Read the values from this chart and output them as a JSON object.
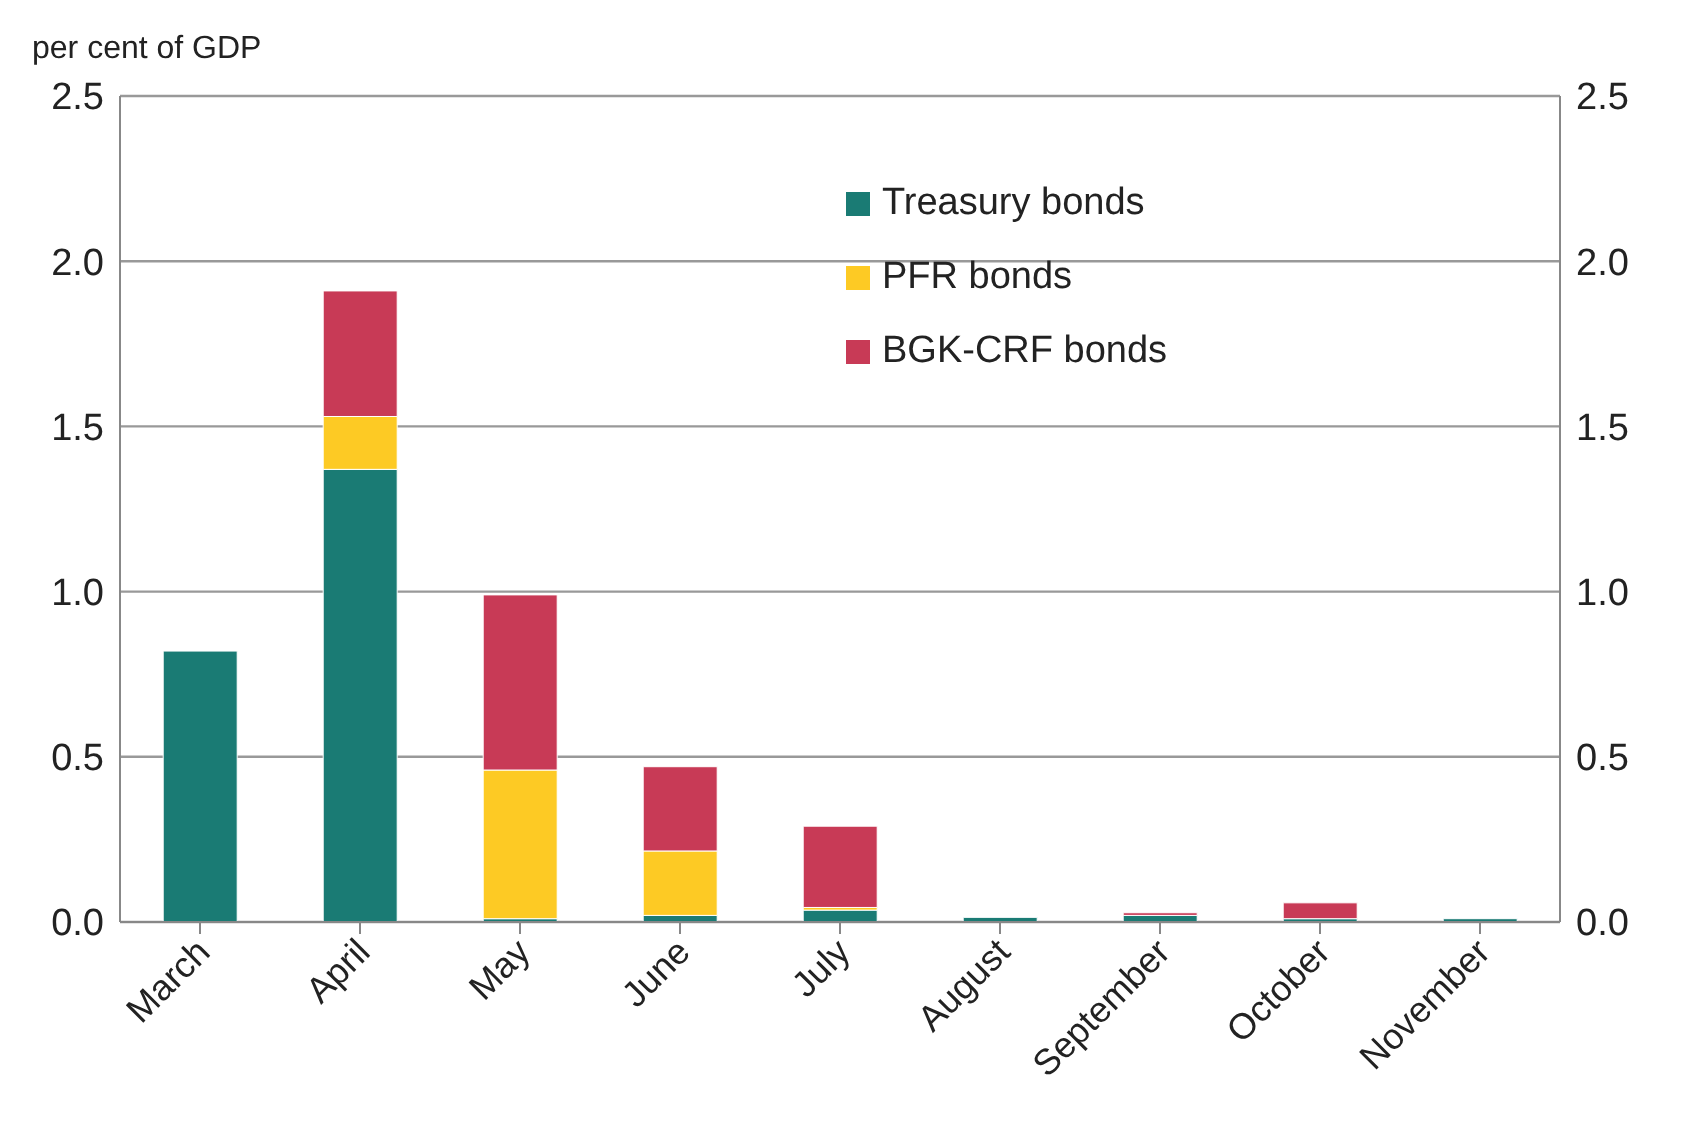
{
  "chart_data": {
    "type": "bar",
    "ylabel": "per cent of GDP",
    "stacked": true,
    "categories": [
      "March",
      "April",
      "May",
      "June",
      "July",
      "August",
      "September",
      "October",
      "November"
    ],
    "series": [
      {
        "name": "Treasury bonds",
        "color": "#1a7b74",
        "values": [
          0.82,
          1.37,
          0.01,
          0.02,
          0.036,
          0.014,
          0.02,
          0.01,
          0.01
        ]
      },
      {
        "name": "PFR bonds",
        "color": "#fdca24",
        "values": [
          0,
          0.16,
          0.45,
          0.195,
          0.008,
          0,
          0,
          0,
          0
        ]
      },
      {
        "name": "BGK-CRF bonds",
        "color": "#c83a56",
        "values": [
          0,
          0.38,
          0.53,
          0.255,
          0.246,
          0,
          0.008,
          0.048,
          0
        ]
      }
    ],
    "ylim": [
      0,
      2.5
    ],
    "yticks": [
      {
        "value": 0,
        "label": "0.0"
      },
      0.5,
      {
        "value": 1,
        "label": "1.0"
      },
      1.5,
      {
        "value": 2,
        "label": "2.0"
      },
      2.5
    ],
    "y2lim": [
      0,
      2.5
    ],
    "y2ticks": [
      {
        "value": 0,
        "label": "0.0"
      },
      0.5,
      {
        "value": 1,
        "label": "1.0"
      },
      1.5,
      {
        "value": 2,
        "label": "2.0"
      },
      2.5
    ],
    "grid": "y",
    "legend": "top right"
  }
}
